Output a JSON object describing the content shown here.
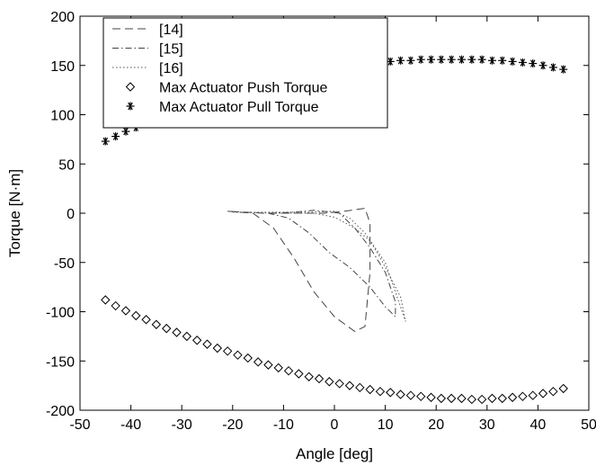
{
  "chart_data": {
    "type": "line",
    "title": "",
    "xlabel": "Angle [deg]",
    "ylabel": "Torque [N·m]",
    "xlim": [
      -50,
      50
    ],
    "ylim": [
      -200,
      200
    ],
    "xticks": [
      -50,
      -40,
      -30,
      -20,
      -10,
      0,
      10,
      20,
      30,
      40,
      50
    ],
    "yticks": [
      -200,
      -150,
      -100,
      -50,
      0,
      50,
      100,
      150,
      200
    ],
    "grid": false,
    "legend_position": "top-left",
    "series": [
      {
        "name": "[14]",
        "style": "dashed",
        "color": "#444444",
        "points": [
          [
            -21,
            2
          ],
          [
            -16,
            0
          ],
          [
            -12,
            -15
          ],
          [
            -8,
            -45
          ],
          [
            -4,
            -80
          ],
          [
            0,
            -105
          ],
          [
            4,
            -120
          ],
          [
            6,
            -115
          ],
          [
            7,
            -60
          ],
          [
            7,
            -10
          ],
          [
            6,
            5
          ],
          [
            2,
            2
          ],
          [
            -2,
            0
          ],
          [
            -8,
            0
          ],
          [
            -14,
            0
          ],
          [
            -21,
            2
          ]
        ]
      },
      {
        "name": "[15]",
        "style": "dash-dot",
        "color": "#444444",
        "points": [
          [
            -13,
            0
          ],
          [
            -9,
            -5
          ],
          [
            -5,
            -20
          ],
          [
            -1,
            -40
          ],
          [
            3,
            -55
          ],
          [
            7,
            -75
          ],
          [
            10,
            -95
          ],
          [
            12,
            -105
          ],
          [
            12,
            -90
          ],
          [
            10,
            -60
          ],
          [
            7,
            -35
          ],
          [
            4,
            -15
          ],
          [
            1,
            0
          ],
          [
            -4,
            3
          ],
          [
            -8,
            1
          ],
          [
            -13,
            0
          ]
        ]
      },
      {
        "name": "[16]",
        "style": "dotted",
        "color": "#555555",
        "points": [
          [
            -20,
            1
          ],
          [
            -12,
            0
          ],
          [
            -4,
            0
          ],
          [
            0,
            -4
          ],
          [
            4,
            -15
          ],
          [
            7,
            -28
          ],
          [
            9,
            -45
          ],
          [
            11,
            -65
          ],
          [
            13,
            -85
          ],
          [
            14,
            -110
          ],
          [
            12,
            -80
          ],
          [
            10,
            -50
          ],
          [
            6,
            -20
          ],
          [
            3,
            -5
          ],
          [
            0,
            2
          ],
          [
            -5,
            1
          ],
          [
            -12,
            1
          ],
          [
            -20,
            1
          ]
        ]
      },
      {
        "name": "Max Actuator Push Torque",
        "style": "marker",
        "marker": "diamond",
        "color": "#000000",
        "points": [
          [
            -45,
            -88
          ],
          [
            -43,
            -94
          ],
          [
            -41,
            -99
          ],
          [
            -39,
            -104
          ],
          [
            -37,
            -108
          ],
          [
            -35,
            -113
          ],
          [
            -33,
            -117
          ],
          [
            -31,
            -121
          ],
          [
            -29,
            -125
          ],
          [
            -27,
            -129
          ],
          [
            -25,
            -133
          ],
          [
            -23,
            -137
          ],
          [
            -21,
            -140
          ],
          [
            -19,
            -144
          ],
          [
            -17,
            -147
          ],
          [
            -15,
            -151
          ],
          [
            -13,
            -154
          ],
          [
            -11,
            -157
          ],
          [
            -9,
            -160
          ],
          [
            -7,
            -163
          ],
          [
            -5,
            -166
          ],
          [
            -3,
            -168
          ],
          [
            -1,
            -171
          ],
          [
            1,
            -173
          ],
          [
            3,
            -175
          ],
          [
            5,
            -177
          ],
          [
            7,
            -179
          ],
          [
            9,
            -181
          ],
          [
            11,
            -182
          ],
          [
            13,
            -184
          ],
          [
            15,
            -185
          ],
          [
            17,
            -186
          ],
          [
            19,
            -187
          ],
          [
            21,
            -188
          ],
          [
            23,
            -188
          ],
          [
            25,
            -188
          ],
          [
            27,
            -189
          ],
          [
            29,
            -189
          ],
          [
            31,
            -188
          ],
          [
            33,
            -188
          ],
          [
            35,
            -187
          ],
          [
            37,
            -186
          ],
          [
            39,
            -185
          ],
          [
            41,
            -183
          ],
          [
            43,
            -181
          ],
          [
            45,
            -178
          ]
        ]
      },
      {
        "name": "Max Actuator Pull Torque",
        "style": "marker",
        "marker": "asterisk",
        "color": "#000000",
        "points": [
          [
            -45,
            73
          ],
          [
            -43,
            78
          ],
          [
            -41,
            83
          ],
          [
            -39,
            87
          ],
          [
            -37,
            92
          ],
          [
            -35,
            96
          ],
          [
            -33,
            100
          ],
          [
            -31,
            104
          ],
          [
            -29,
            108
          ],
          [
            -27,
            112
          ],
          [
            -25,
            116
          ],
          [
            -23,
            119
          ],
          [
            -21,
            122
          ],
          [
            -19,
            126
          ],
          [
            -17,
            129
          ],
          [
            -15,
            132
          ],
          [
            -13,
            134
          ],
          [
            -11,
            137
          ],
          [
            -9,
            139
          ],
          [
            -7,
            142
          ],
          [
            -5,
            144
          ],
          [
            -3,
            145
          ],
          [
            -1,
            147
          ],
          [
            1,
            149
          ],
          [
            3,
            150
          ],
          [
            5,
            152
          ],
          [
            7,
            153
          ],
          [
            9,
            154
          ],
          [
            11,
            154
          ],
          [
            13,
            155
          ],
          [
            15,
            155
          ],
          [
            17,
            156
          ],
          [
            19,
            156
          ],
          [
            21,
            156
          ],
          [
            23,
            156
          ],
          [
            25,
            156
          ],
          [
            27,
            156
          ],
          [
            29,
            156
          ],
          [
            31,
            155
          ],
          [
            33,
            155
          ],
          [
            35,
            154
          ],
          [
            37,
            153
          ],
          [
            39,
            152
          ],
          [
            41,
            150
          ],
          [
            43,
            148
          ],
          [
            45,
            146
          ]
        ]
      }
    ]
  }
}
